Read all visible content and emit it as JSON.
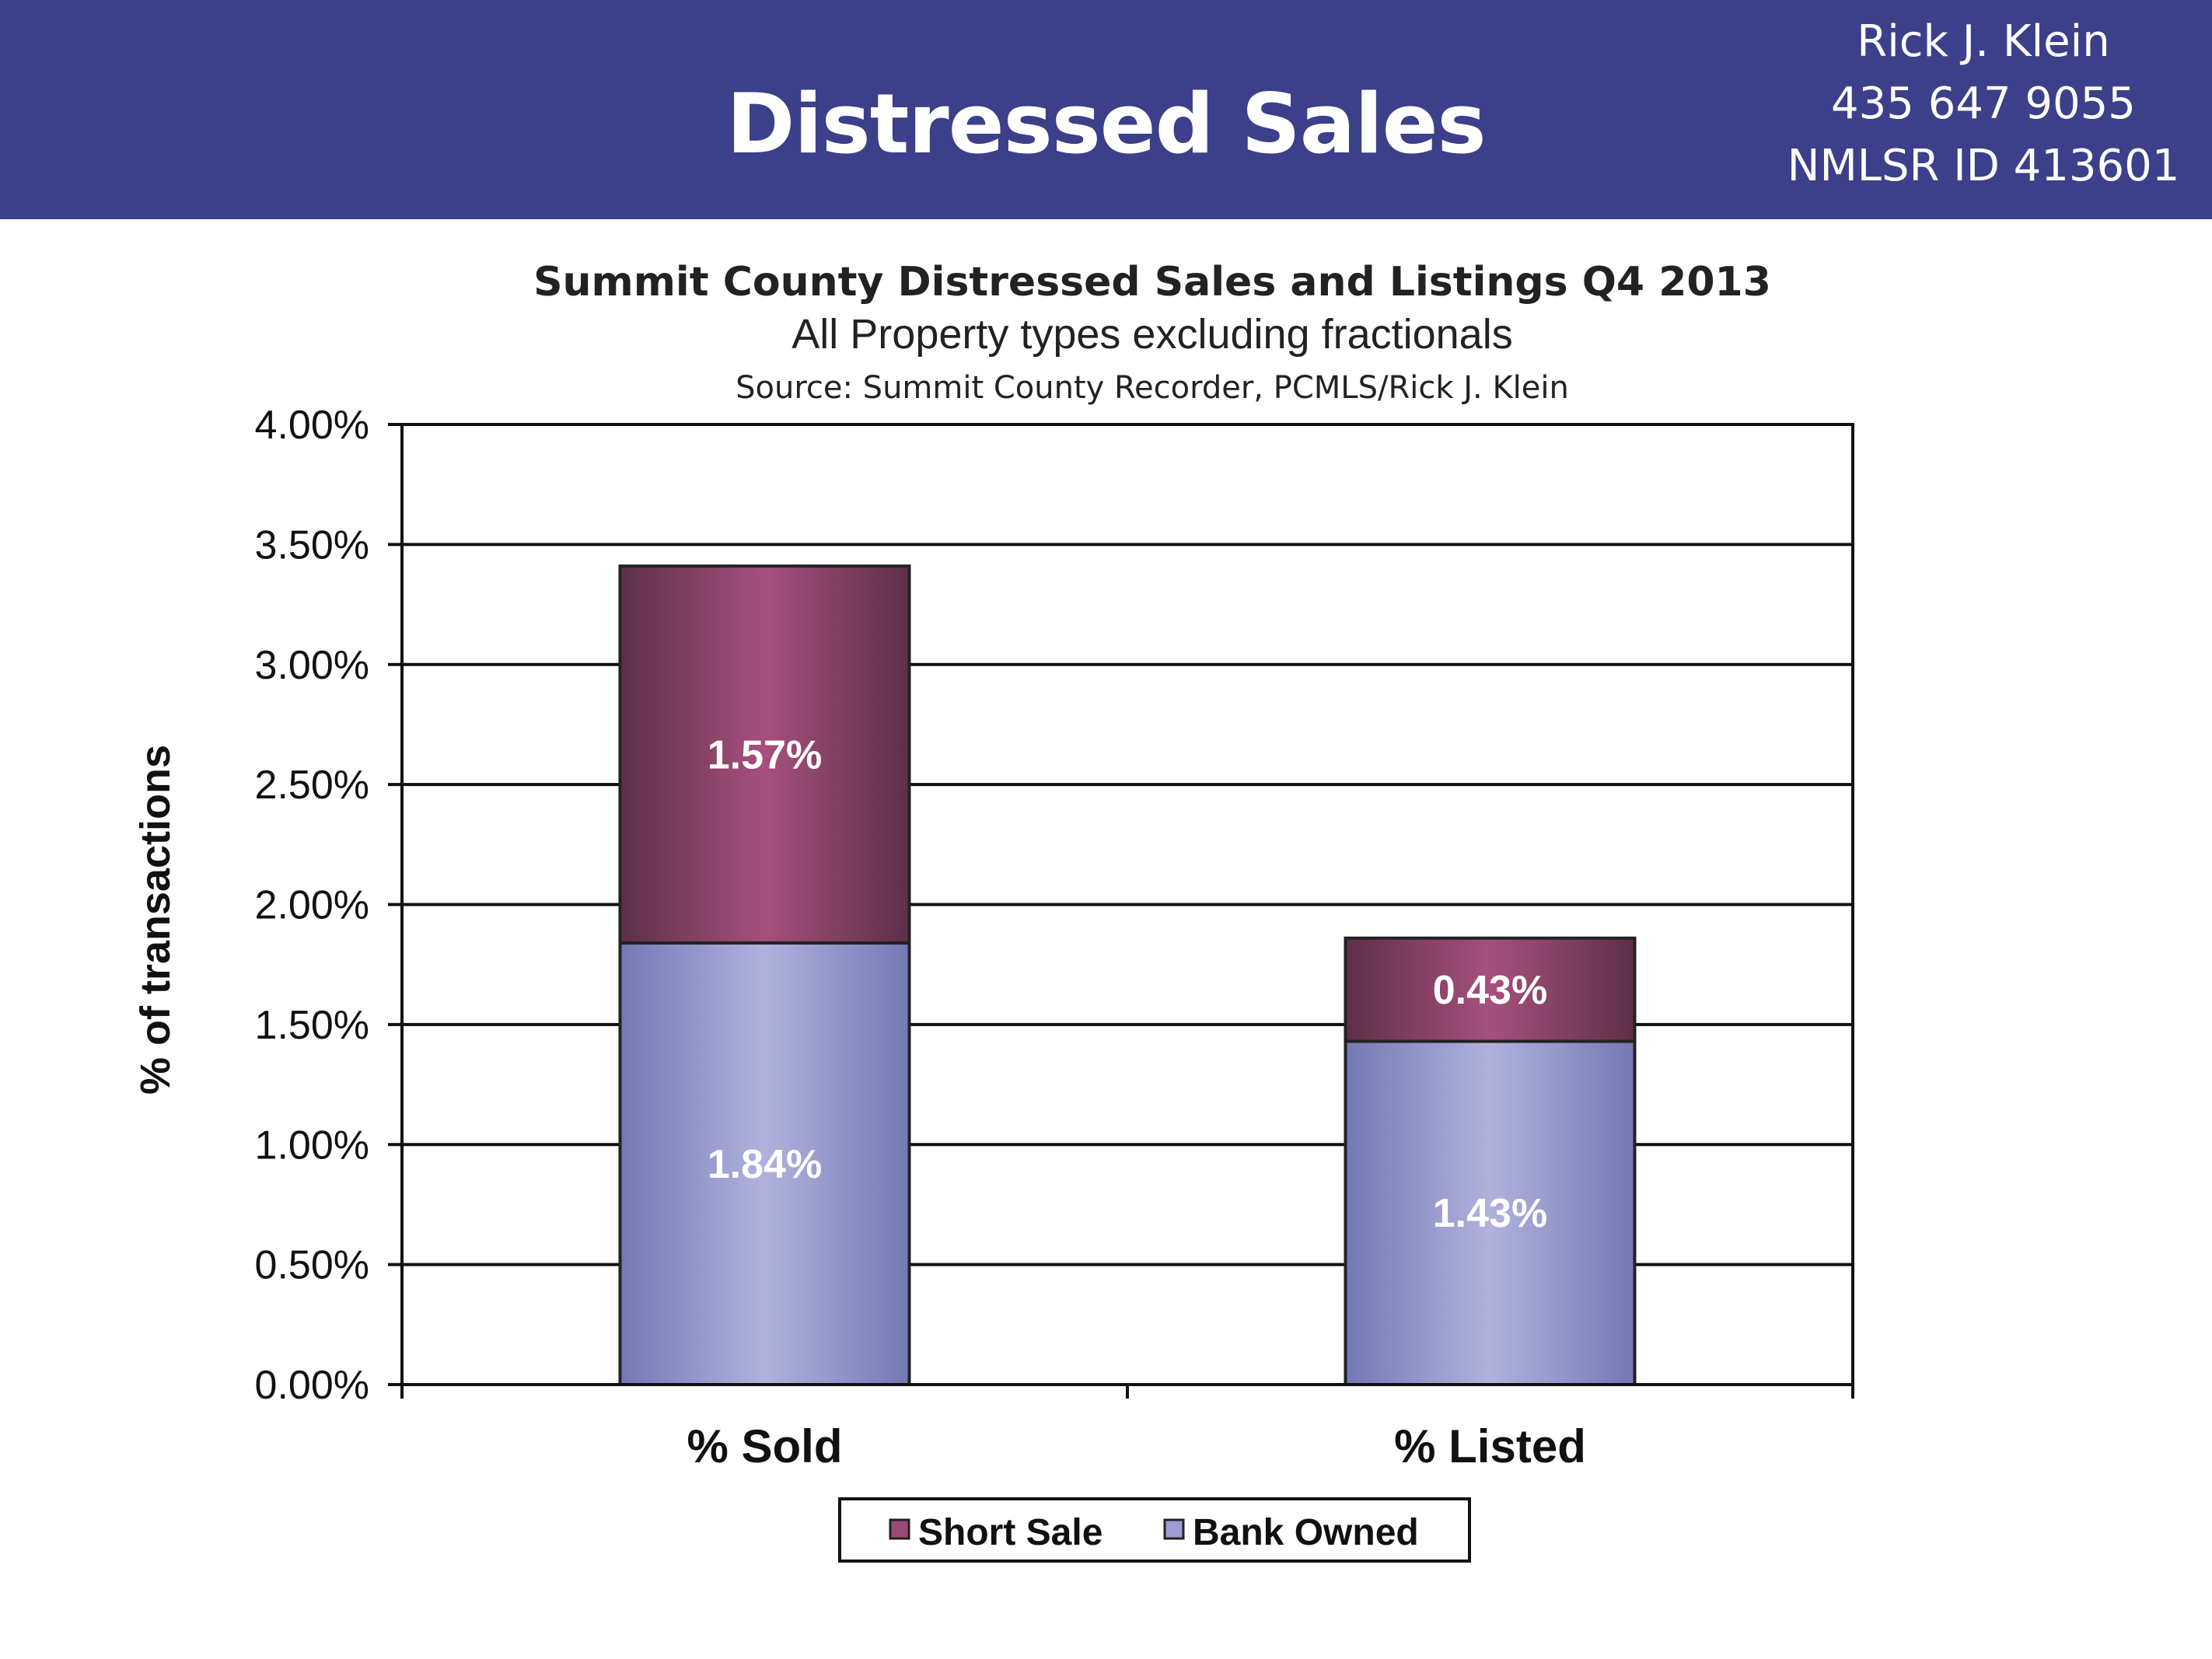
{
  "header": {
    "title": "Distressed Sales",
    "contact": {
      "name": "Rick J. Klein",
      "phone": "435 647 9055",
      "license": "NMLSR ID 413601"
    }
  },
  "colors": {
    "header_bg": "#3c3f8a",
    "short_sale": "#9b4a73",
    "bank_owned": "#9a9ed2"
  },
  "chart_data": {
    "type": "bar",
    "stacked": true,
    "title": "Summit County Distressed Sales and Listings Q4 2013",
    "subtitle": "All Property types excluding fractionals",
    "source": "Source: Summit County Recorder, PCMLS/Rick J. Klein",
    "ylabel": "% of transactions",
    "xlabel": "",
    "categories": [
      "% Sold",
      "% Listed"
    ],
    "series": [
      {
        "name": "Bank Owned",
        "values": [
          1.84,
          1.43
        ],
        "labels": [
          "1.84%",
          "1.43%"
        ]
      },
      {
        "name": "Short Sale",
        "values": [
          1.57,
          0.43
        ],
        "labels": [
          "1.57%",
          "0.43%"
        ]
      }
    ],
    "ylim": [
      0,
      4
    ],
    "yticks": [
      {
        "value": 0,
        "label": "0.00%"
      },
      {
        "value": 0.5,
        "label": "0.50%"
      },
      {
        "value": 1,
        "label": "1.00%"
      },
      {
        "value": 1.5,
        "label": "1.50%"
      },
      {
        "value": 2,
        "label": "2.00%"
      },
      {
        "value": 2.5,
        "label": "2.50%"
      },
      {
        "value": 3,
        "label": "3.00%"
      },
      {
        "value": 3.5,
        "label": "3.50%"
      },
      {
        "value": 4,
        "label": "4.00%"
      }
    ],
    "legend": [
      "Short Sale",
      "Bank Owned"
    ],
    "legend_position": "bottom",
    "grid": true
  }
}
